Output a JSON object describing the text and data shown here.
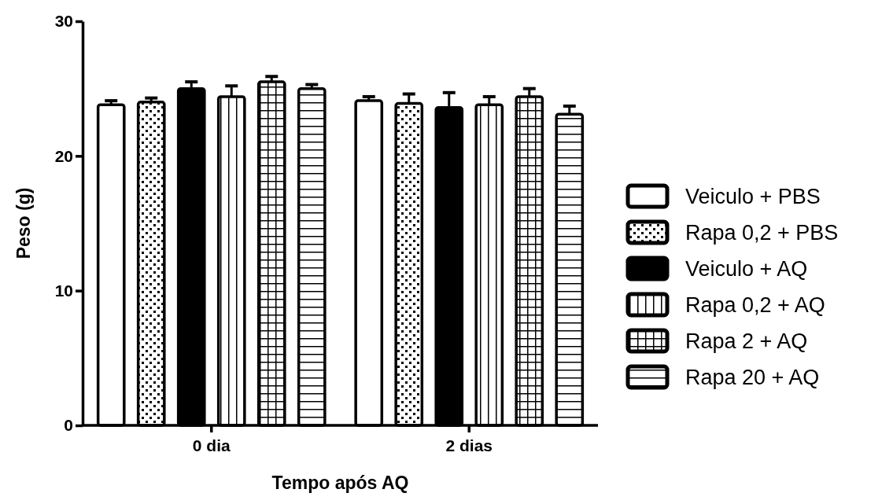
{
  "chart_data": {
    "type": "bar",
    "xlabel": "Tempo após AQ",
    "ylabel": "Peso (g)",
    "categories": [
      "0 dia",
      "2 dias"
    ],
    "series": [
      {
        "name": "Veiculo + PBS",
        "color": "#ffffff",
        "values": [
          23.8,
          24.1
        ],
        "errors": [
          0.3,
          0.3
        ]
      },
      {
        "name": "Rapa 0,2 + PBS",
        "color": "#000000",
        "values": [
          24.0,
          23.9
        ],
        "errors": [
          0.3,
          0.7
        ]
      },
      {
        "name": "Veiculo + AQ",
        "color": "#000000",
        "values": [
          25.0,
          23.6
        ],
        "errors": [
          0.5,
          1.1
        ]
      },
      {
        "name": "Rapa 0,2 + AQ",
        "color": "#000000",
        "values": [
          24.4,
          23.8
        ],
        "errors": [
          0.8,
          0.6
        ]
      },
      {
        "name": "Rapa 2 + AQ",
        "color": "#000000",
        "values": [
          25.5,
          24.4
        ],
        "errors": [
          0.4,
          0.6
        ]
      },
      {
        "name": "Rapa 20 + AQ",
        "color": "#000000",
        "values": [
          25.0,
          23.1
        ],
        "errors": [
          0.3,
          0.6
        ]
      }
    ],
    "ylim": [
      0,
      30
    ],
    "yticks": [
      0,
      10,
      20,
      30
    ],
    "grid": false,
    "legend": "right"
  }
}
